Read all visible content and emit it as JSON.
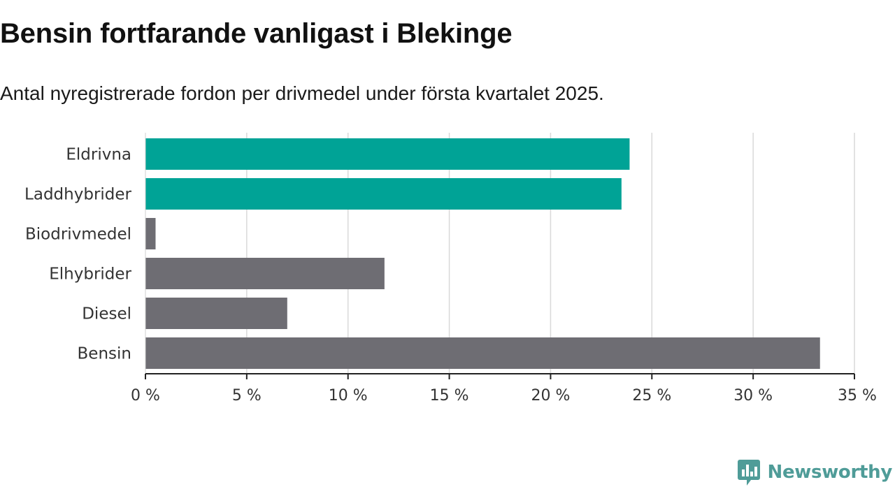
{
  "header": {
    "title": "Bensin fortfarande vanligast i Blekinge",
    "subtitle": "Antal nyregistrerade fordon per drivmedel under första kvartalet 2025."
  },
  "chart_data": {
    "type": "bar",
    "orientation": "horizontal",
    "categories": [
      "Eldrivna",
      "Laddhybrider",
      "Biodrivmedel",
      "Elhybrider",
      "Diesel",
      "Bensin"
    ],
    "values": [
      23.9,
      23.5,
      0.5,
      11.8,
      7.0,
      33.3
    ],
    "colors": [
      "#00a396",
      "#00a396",
      "#6e6d73",
      "#6e6d73",
      "#6e6d73",
      "#6e6d73"
    ],
    "xlim": [
      0,
      35
    ],
    "xticks": [
      0,
      5,
      10,
      15,
      20,
      25,
      30,
      35
    ],
    "tick_suffix": " %",
    "grid": true,
    "xlabel": "",
    "ylabel": ""
  },
  "branding": {
    "logo_text": "Newsworthy",
    "logo_icon": "bar-chart-speech-bubble-icon",
    "logo_color": "#4f9c98"
  }
}
